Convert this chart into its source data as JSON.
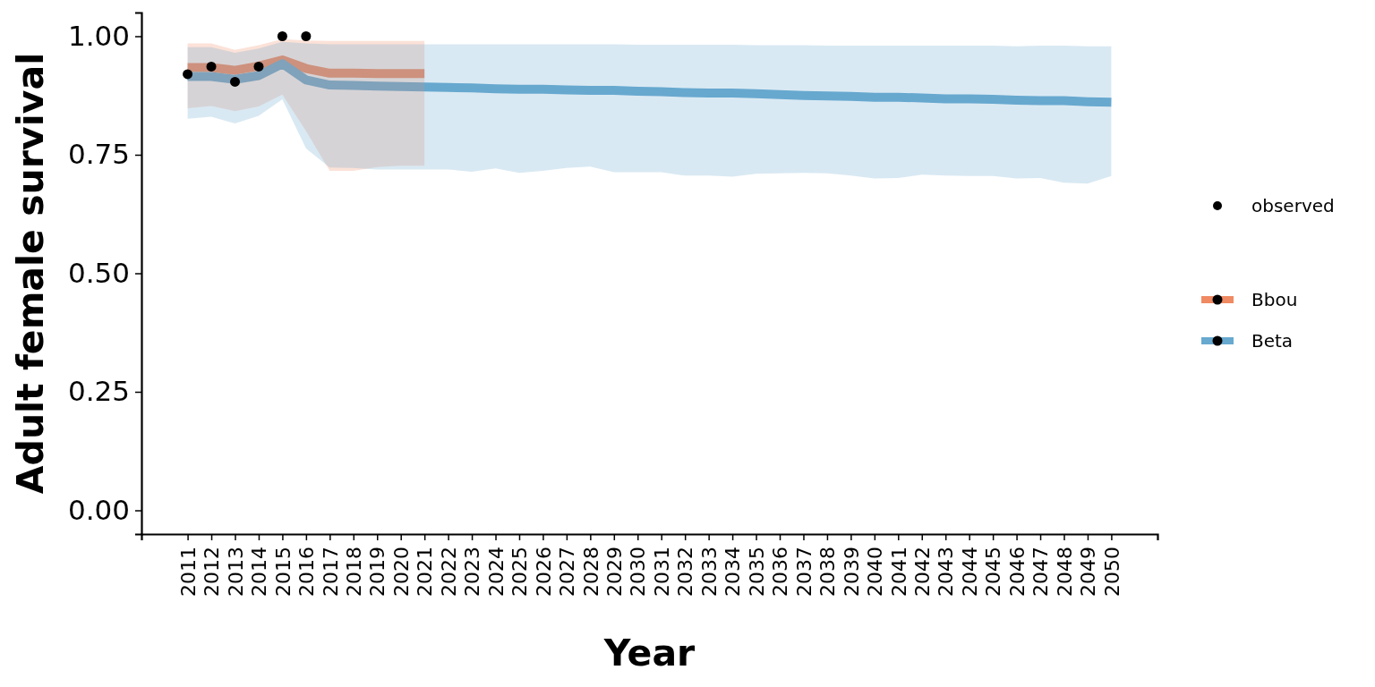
{
  "chart_data": {
    "type": "line",
    "xlabel": "Year",
    "ylabel": "Adult female survival",
    "xlim": [
      2009.05,
      2051.95
    ],
    "xticks": [
      2011,
      2012,
      2013,
      2014,
      2015,
      2016,
      2017,
      2018,
      2019,
      2020,
      2021,
      2022,
      2023,
      2024,
      2025,
      2026,
      2027,
      2028,
      2029,
      2030,
      2031,
      2032,
      2033,
      2034,
      2035,
      2036,
      2037,
      2038,
      2039,
      2040,
      2041,
      2042,
      2043,
      2044,
      2045,
      2046,
      2047,
      2048,
      2049,
      2050
    ],
    "ylim": [
      -0.05,
      1.05
    ],
    "yticks": [
      {
        "value": 0,
        "label": "0.00"
      },
      0.25,
      {
        "value": 0.5,
        "label": "0.50"
      },
      0.75,
      {
        "value": 1,
        "label": "1.00"
      }
    ],
    "legend": "right",
    "series": [
      {
        "name": "Bbou",
        "color": "#ef8a62",
        "x": [
          2011,
          2012,
          2013,
          2014,
          2015,
          2016,
          2017,
          2018,
          2019,
          2020,
          2021
        ],
        "values": [
          0.934,
          0.934,
          0.928,
          0.937,
          0.95,
          0.932,
          0.922,
          0.922,
          0.921,
          0.921,
          0.921
        ],
        "lower": [
          0.848,
          0.853,
          0.842,
          0.852,
          0.877,
          0.8,
          0.716,
          0.716,
          0.724,
          0.727,
          0.727
        ],
        "upper": [
          0.985,
          0.985,
          0.971,
          0.981,
          0.994,
          0.991,
          0.99,
          0.99,
          0.99,
          0.99,
          0.99
        ]
      },
      {
        "name": "Beta",
        "color": "#67a9cf",
        "x": [
          2011,
          2012,
          2013,
          2014,
          2015,
          2016,
          2017,
          2018,
          2019,
          2020,
          2021,
          2022,
          2023,
          2024,
          2025,
          2026,
          2027,
          2028,
          2029,
          2030,
          2031,
          2032,
          2033,
          2034,
          2035,
          2036,
          2037,
          2038,
          2039,
          2040,
          2041,
          2042,
          2043,
          2044,
          2045,
          2046,
          2047,
          2048,
          2049,
          2050
        ],
        "values": [
          0.915,
          0.915,
          0.909,
          0.917,
          0.942,
          0.908,
          0.897,
          0.896,
          0.895,
          0.894,
          0.893,
          0.892,
          0.891,
          0.889,
          0.888,
          0.888,
          0.887,
          0.886,
          0.886,
          0.884,
          0.883,
          0.881,
          0.88,
          0.88,
          0.879,
          0.877,
          0.875,
          0.874,
          0.873,
          0.871,
          0.871,
          0.87,
          0.868,
          0.868,
          0.867,
          0.865,
          0.864,
          0.864,
          0.862,
          0.861
        ],
        "lower": [
          0.826,
          0.83,
          0.816,
          0.832,
          0.867,
          0.763,
          0.723,
          0.722,
          0.719,
          0.719,
          0.719,
          0.719,
          0.714,
          0.721,
          0.712,
          0.716,
          0.722,
          0.725,
          0.713,
          0.713,
          0.713,
          0.706,
          0.706,
          0.704,
          0.71,
          0.711,
          0.712,
          0.711,
          0.706,
          0.7,
          0.701,
          0.708,
          0.706,
          0.705,
          0.705,
          0.7,
          0.701,
          0.691,
          0.689,
          0.705
        ],
        "upper": [
          0.977,
          0.977,
          0.965,
          0.974,
          0.988,
          0.985,
          0.983,
          0.983,
          0.983,
          0.983,
          0.983,
          0.983,
          0.983,
          0.983,
          0.983,
          0.983,
          0.983,
          0.983,
          0.983,
          0.982,
          0.982,
          0.982,
          0.982,
          0.982,
          0.981,
          0.981,
          0.981,
          0.98,
          0.98,
          0.98,
          0.98,
          0.98,
          0.98,
          0.98,
          0.98,
          0.979,
          0.98,
          0.98,
          0.979,
          0.979
        ]
      },
      {
        "name": "observed",
        "type": "scatter",
        "color": "#000000",
        "marker": "circle",
        "x": [
          2011,
          2012,
          2013,
          2014,
          2015,
          2016
        ],
        "values": [
          0.92,
          0.936,
          0.904,
          0.936,
          1,
          1
        ]
      }
    ]
  }
}
